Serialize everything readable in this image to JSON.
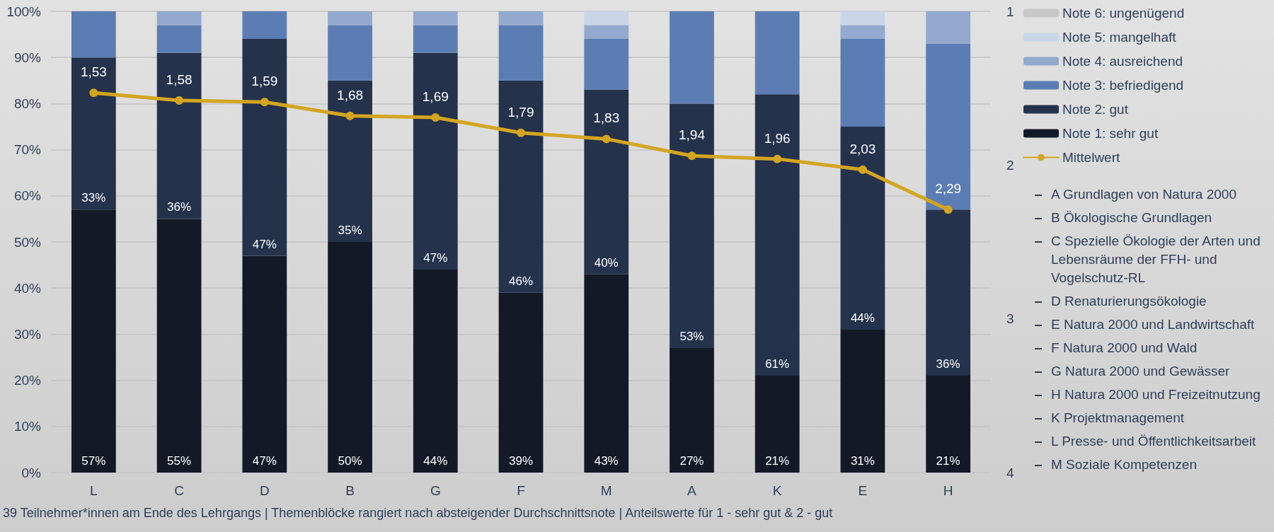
{
  "chart_data": {
    "type": "bar",
    "stacked": true,
    "categories": [
      "L",
      "C",
      "D",
      "B",
      "G",
      "F",
      "M",
      "A",
      "K",
      "E",
      "H"
    ],
    "series": [
      {
        "name": "Note 1: sehr gut",
        "color": "#131926",
        "values": [
          57,
          55,
          47,
          50,
          44,
          39,
          43,
          27,
          21,
          31,
          21
        ],
        "value_labels": [
          "57%",
          "55%",
          "47%",
          "50%",
          "44%",
          "39%",
          "43%",
          "27%",
          "21%",
          "31%",
          "21%"
        ]
      },
      {
        "name": "Note 2: gut",
        "color": "#24324c",
        "values": [
          33,
          36,
          47,
          35,
          47,
          46,
          40,
          53,
          61,
          44,
          36
        ],
        "value_labels": [
          "33%",
          "36%",
          "47%",
          "35%",
          "47%",
          "46%",
          "40%",
          "53%",
          "61%",
          "44%",
          "36%"
        ]
      },
      {
        "name": "Note 3: befriedigend",
        "color": "#5b7db3",
        "values": [
          10,
          6,
          6,
          12,
          6,
          12,
          11,
          20,
          18,
          19,
          36
        ]
      },
      {
        "name": "Note 4: ausreichend",
        "color": "#93a9cd",
        "values": [
          0,
          3,
          0,
          3,
          3,
          3,
          3,
          0,
          0,
          3,
          7
        ]
      },
      {
        "name": "Note 5: mangelhaft",
        "color": "#c9d5e8",
        "values": [
          0,
          0,
          0,
          0,
          0,
          0,
          3,
          0,
          0,
          3,
          0
        ]
      },
      {
        "name": "Note 6: ungenügend",
        "color": "#c8c8c8",
        "values": [
          0,
          0,
          0,
          0,
          0,
          0,
          0,
          0,
          0,
          0,
          0
        ]
      },
      {
        "name": "Mittelwert",
        "type": "line",
        "axis": "y2",
        "color": "#d4a520",
        "values": [
          1.53,
          1.58,
          1.59,
          1.68,
          1.69,
          1.79,
          1.83,
          1.94,
          1.96,
          2.03,
          2.29
        ],
        "value_labels": [
          "1,53",
          "1,58",
          "1,59",
          "1,68",
          "1,69",
          "1,79",
          "1,83",
          "1,94",
          "1,96",
          "2,03",
          "2,29"
        ]
      }
    ],
    "ylim": [
      0,
      100
    ],
    "yticks": [
      {
        "value": 0,
        "label": "0%"
      },
      {
        "value": 10,
        "label": "10%"
      },
      {
        "value": 20,
        "label": "20%"
      },
      {
        "value": 30,
        "label": "30%"
      },
      {
        "value": 40,
        "label": "40%"
      },
      {
        "value": 50,
        "label": "50%"
      },
      {
        "value": 60,
        "label": "60%"
      },
      {
        "value": 70,
        "label": "70%"
      },
      {
        "value": 80,
        "label": "80%"
      },
      {
        "value": 90,
        "label": "90%"
      },
      {
        "value": 100,
        "label": "100%"
      }
    ],
    "y2lim": [
      4,
      1
    ],
    "y2ticks": [
      1,
      2,
      3,
      4
    ],
    "grid": "y",
    "legend": "right",
    "marker": "circle",
    "line_style": "solid",
    "annotations": [
      "39 Teilnehmer*innen am Ende des Lehrgangs | Themenblöcke rangiert nach absteigender Durchschnittsnote | Anteilswerte für 1 - sehr gut & 2 - gut",
      "A Grundlagen von Natura 2000",
      "B Ökologische Grundlagen",
      "C Spezielle Ökologie der Arten und Lebensräume der FFH- und Vogelschutz-RL",
      "D Renaturierungsökologie",
      "E Natura 2000 und Landwirtschaft",
      "F Natura 2000 und Wald",
      "G Natura 2000 und Gewässer",
      "H Natura 2000 und Freizeitnutzung",
      "K Projektmanagement",
      "L Presse- und Öffentlichkeitsarbeit",
      "M Soziale Kompetenzen"
    ]
  }
}
